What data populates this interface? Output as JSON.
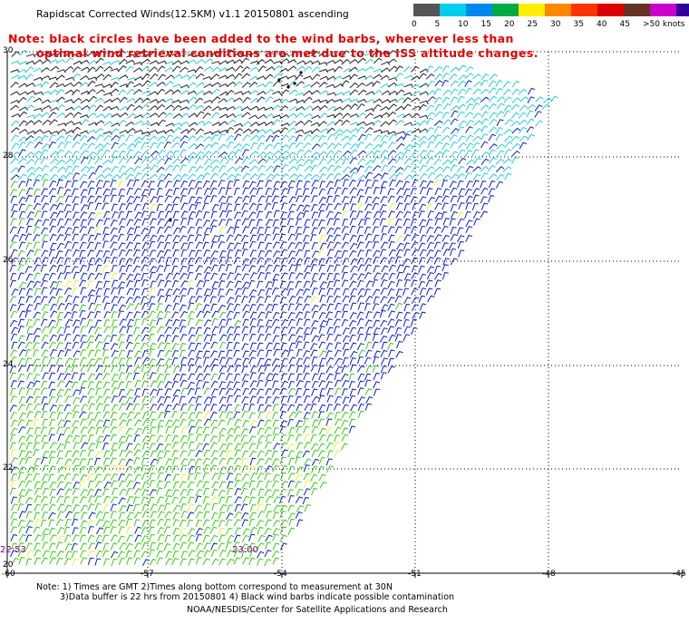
{
  "header": {
    "title": "Rapidscat Corrected Winds(12.5KM) v1.1 20150801 ascending"
  },
  "legend": {
    "labels": [
      "0",
      "5",
      "10",
      "15",
      "20",
      "25",
      "30",
      "35",
      "40",
      "45",
      ">50 knots"
    ],
    "colors": [
      "#555555",
      "#00ccee",
      "#0088ee",
      "#00aa44",
      "#ffee00",
      "#ff8800",
      "#ff3300",
      "#dd0000",
      "#663322",
      "#cc00cc",
      "#330099"
    ]
  },
  "notice": {
    "line1": "Note: black circles have been added to the wind barbs, wherever less than",
    "line2": "optimal wind retrieval conditions are met due to the ISS altitude changes."
  },
  "map": {
    "lat_labels": [
      "30",
      "28",
      "26",
      "24",
      "22",
      "20"
    ],
    "lon_labels": [
      "-60",
      "-57",
      "-54",
      "-51",
      "-48",
      "-45"
    ],
    "time_labels": [
      "22:53",
      "23:00"
    ],
    "colors": {
      "black": "#222222",
      "cyan": "#22ccdd",
      "blue": "#0a1ad0",
      "green": "#33cc11",
      "yellow": "#eeee33",
      "grid": "#000000"
    }
  },
  "footer": {
    "note1": "Note: 1) Times are GMT 2)Times along bottom correspond to measurement at 30N",
    "note2": "3)Data buffer is 22 hrs from 20150801 4) Black wind barbs indicate possible contamination",
    "credit": "NOAA/NESDIS/Center for Satellite Applications and Research"
  }
}
